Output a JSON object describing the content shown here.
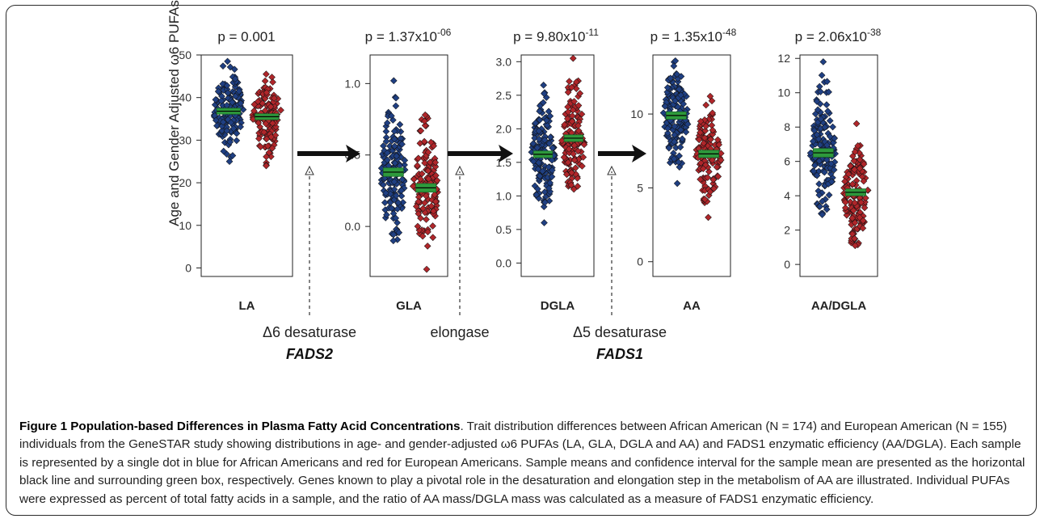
{
  "figure": {
    "ylabel": "Age and Gender Adjusted ω6 PUFAs",
    "enzymes": [
      {
        "line1": "Δ6 desaturase",
        "line2": "FADS2"
      },
      {
        "line1": "elongase",
        "line2": ""
      },
      {
        "line1": "Δ5 desaturase",
        "line2": "FADS1"
      }
    ]
  },
  "caption": {
    "title": "Figure 1 Population-based Differences in Plasma Fatty Acid Concentrations",
    "body": ". Trait distribution differences between African American (N = 174) and European American (N = 155) individuals from the GeneSTAR study showing distributions in age- and gender-adjusted ω6 PUFAs (LA, GLA, DGLA and AA) and FADS1 enzymatic efficiency (AA/DGLA). Each sample is represented by a single dot in blue for African Americans and red for European Americans. Sample means and confidence interval for the sample mean are presented as the horizontal black line and surrounding green box, respectively. Genes known to play a pivotal role in the desaturation and elongation step in the metabolism of AA are illustrated. Individual PUFAs were expressed as percent of total fatty acids in a sample, and the ratio of AA mass/DGLA mass was calculated as a measure of FADS1 enzymatic efficiency."
  },
  "colors": {
    "african_american": "#1f3f82",
    "european_american": "#b0262a",
    "mean_box": "#2e9a3c",
    "mean_line": "#000000"
  },
  "chart_data": [
    {
      "type": "scatter",
      "title": "LA",
      "p_base": "p = 0.001",
      "p_exp": "",
      "ylim": [
        -2,
        50
      ],
      "yticks": [
        0,
        10,
        20,
        30,
        40,
        50
      ],
      "series": [
        {
          "group": "african_american",
          "min": 25,
          "max": 48.5,
          "mean": 36.8,
          "ci": 0.7
        },
        {
          "group": "european_american",
          "min": 24,
          "max": 45.5,
          "mean": 35.5,
          "ci": 0.7
        }
      ]
    },
    {
      "type": "scatter",
      "title": "GLA",
      "p_base": "p = 1.37x10",
      "p_exp": "-06",
      "ylim": [
        -0.35,
        1.2
      ],
      "yticks": [
        0.0,
        0.5,
        1.0
      ],
      "series": [
        {
          "group": "african_american",
          "min": -0.1,
          "max": 1.02,
          "mean": 0.38,
          "ci": 0.03
        },
        {
          "group": "european_american",
          "min": -0.3,
          "max": 0.78,
          "mean": 0.27,
          "ci": 0.03
        }
      ]
    },
    {
      "type": "scatter",
      "title": "DGLA",
      "p_base": "p = 9.80x10",
      "p_exp": "-11",
      "ylim": [
        -0.2,
        3.1
      ],
      "yticks": [
        0.0,
        0.5,
        1.0,
        1.5,
        2.0,
        2.5,
        3.0
      ],
      "series": [
        {
          "group": "african_american",
          "min": 0.6,
          "max": 2.65,
          "mean": 1.62,
          "ci": 0.05
        },
        {
          "group": "european_american",
          "min": 1.1,
          "max": 3.05,
          "mean": 1.86,
          "ci": 0.05
        }
      ]
    },
    {
      "type": "scatter",
      "title": "AA",
      "p_base": "p = 1.35x10",
      "p_exp": "-48",
      "ylim": [
        -1,
        14
      ],
      "yticks": [
        0,
        5,
        10
      ],
      "series": [
        {
          "group": "african_american",
          "min": 5.3,
          "max": 13.6,
          "mean": 9.9,
          "ci": 0.25
        },
        {
          "group": "european_american",
          "min": 3.0,
          "max": 11.2,
          "mean": 7.3,
          "ci": 0.25
        }
      ]
    },
    {
      "type": "scatter",
      "title": "AA/DGLA",
      "p_base": "p = 2.06x10",
      "p_exp": "-38",
      "ylim": [
        -0.7,
        12.2
      ],
      "yticks": [
        0,
        2,
        4,
        6,
        8,
        10,
        12
      ],
      "series": [
        {
          "group": "african_american",
          "min": 2.9,
          "max": 11.8,
          "mean": 6.5,
          "ci": 0.25
        },
        {
          "group": "european_american",
          "min": 1.1,
          "max": 8.2,
          "mean": 4.2,
          "ci": 0.2
        }
      ]
    }
  ]
}
